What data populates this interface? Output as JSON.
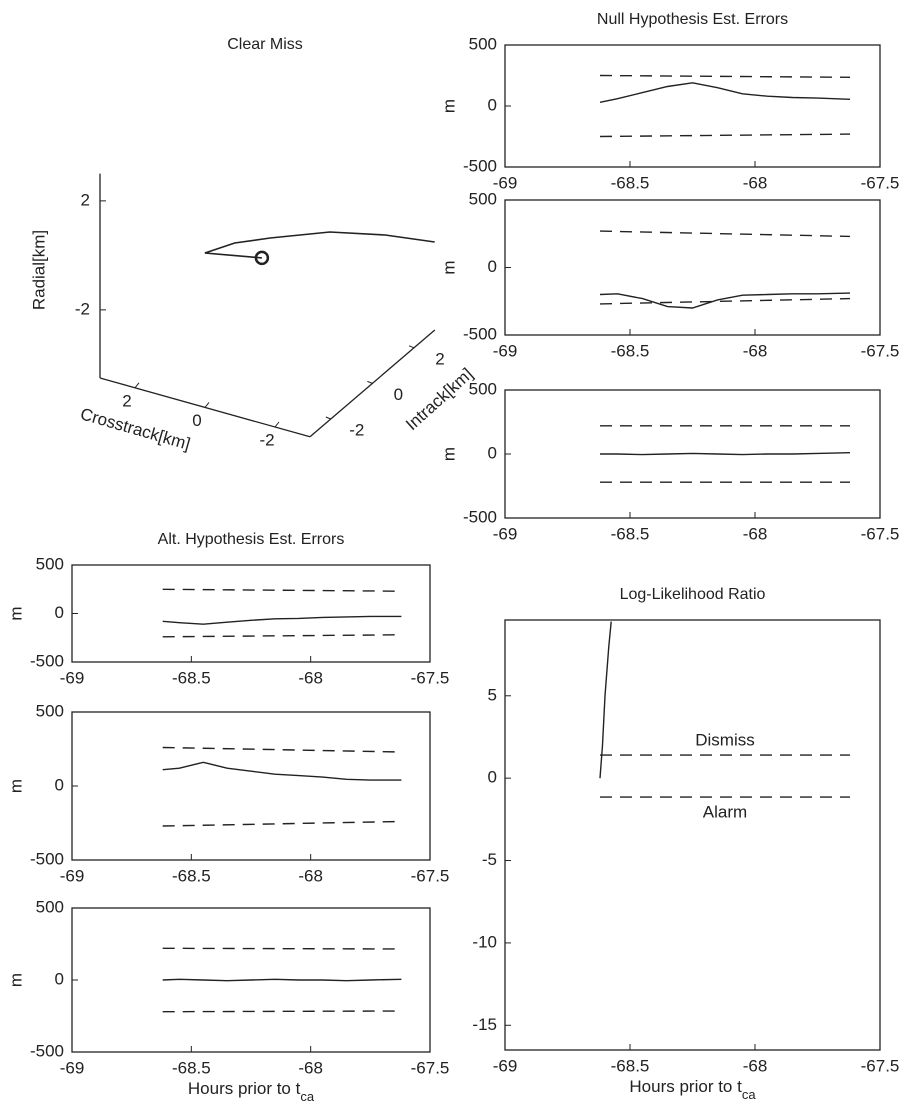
{
  "chart_data": [
    {
      "type": "line3d",
      "title": "Clear Miss",
      "xlabel": "Crosstrack[km]",
      "ylabel": "Intrack[km]",
      "zlabel": "Radial[km]",
      "xlim": [
        -3,
        3
      ],
      "ylim": [
        -3,
        3
      ],
      "zlim": [
        -4.5,
        3
      ],
      "xticks": [
        2,
        0,
        -2
      ],
      "yticks": [
        -2,
        0,
        2
      ],
      "zticks": [
        -2,
        2
      ],
      "series": [
        {
          "color": "#222",
          "x": [
            0.39,
            0.0,
            -0.64,
            -1.77,
            -3.04,
            -4.28
          ],
          "y": [
            -2.35,
            -1.57,
            -0.94,
            0.02,
            0.55,
            0.84
          ],
          "z": [
            0.6,
            0.6,
            0.6,
            0.6,
            0.6,
            0.6
          ]
        },
        {
          "color": "#222",
          "x": [
            0.39,
            -0.96
          ],
          "y": [
            -2.35,
            -1.88
          ],
          "z": [
            0.6,
            0.6
          ]
        },
        {
          "color": "#222",
          "marker": "o",
          "x": [
            -0.96
          ],
          "y": [
            -1.88
          ],
          "z": [
            0.6
          ]
        }
      ]
    },
    {
      "type": "line",
      "title": "Null Hypothesis Est. Errors",
      "ylabel": "m",
      "xlim": [
        -69,
        -67.5
      ],
      "ylim": [
        -500,
        500
      ],
      "xticks": [
        -69,
        -68.5,
        -68,
        -67.5
      ],
      "yticks": [
        -500,
        0,
        500
      ],
      "series": [
        {
          "color": "#222",
          "style": "solid",
          "x": [
            -68.62,
            -68.55,
            -68.45,
            -68.35,
            -68.25,
            -68.15,
            -68.05,
            -67.95,
            -67.85,
            -67.75,
            -67.62
          ],
          "values": [
            30,
            60,
            110,
            160,
            190,
            150,
            100,
            80,
            70,
            65,
            55
          ]
        },
        {
          "color": "#222",
          "style": "dashed",
          "x": [
            -68.62,
            -67.62
          ],
          "values": [
            250,
            235
          ]
        },
        {
          "color": "#222",
          "style": "dashed",
          "x": [
            -68.62,
            -67.62
          ],
          "values": [
            -250,
            -230
          ]
        }
      ]
    },
    {
      "type": "line",
      "ylabel": "m",
      "xlim": [
        -69,
        -67.5
      ],
      "ylim": [
        -500,
        500
      ],
      "xticks": [
        -69,
        -68.5,
        -68,
        -67.5
      ],
      "yticks": [
        -500,
        0,
        500
      ],
      "series": [
        {
          "color": "#222",
          "style": "solid",
          "x": [
            -68.62,
            -68.55,
            -68.45,
            -68.35,
            -68.25,
            -68.15,
            -68.05,
            -67.95,
            -67.85,
            -67.75,
            -67.62
          ],
          "values": [
            -200,
            -195,
            -230,
            -290,
            -300,
            -240,
            -205,
            -200,
            -195,
            -195,
            -190
          ]
        },
        {
          "color": "#222",
          "style": "dashed",
          "x": [
            -68.62,
            -67.62
          ],
          "values": [
            270,
            230
          ]
        },
        {
          "color": "#222",
          "style": "dashed",
          "x": [
            -68.62,
            -67.62
          ],
          "values": [
            -270,
            -230
          ]
        }
      ]
    },
    {
      "type": "line",
      "ylabel": "m",
      "xlim": [
        -69,
        -67.5
      ],
      "ylim": [
        -500,
        500
      ],
      "xticks": [
        -69,
        -68.5,
        -68,
        -67.5
      ],
      "yticks": [
        -500,
        0,
        500
      ],
      "series": [
        {
          "color": "#222",
          "style": "solid",
          "x": [
            -68.62,
            -68.55,
            -68.45,
            -68.35,
            -68.25,
            -68.15,
            -68.05,
            -67.95,
            -67.85,
            -67.75,
            -67.62
          ],
          "values": [
            0,
            0,
            -5,
            0,
            5,
            0,
            -5,
            0,
            0,
            5,
            10
          ]
        },
        {
          "color": "#222",
          "style": "dashed",
          "x": [
            -68.62,
            -67.62
          ],
          "values": [
            220,
            220
          ]
        },
        {
          "color": "#222",
          "style": "dashed",
          "x": [
            -68.62,
            -67.62
          ],
          "values": [
            -220,
            -220
          ]
        }
      ]
    },
    {
      "type": "line",
      "title": "Alt. Hypothesis Est. Errors",
      "ylabel": "m",
      "xlim": [
        -69,
        -67.5
      ],
      "ylim": [
        -500,
        500
      ],
      "xticks": [
        -69,
        -68.5,
        -68,
        -67.5
      ],
      "yticks": [
        -500,
        0,
        500
      ],
      "series": [
        {
          "color": "#222",
          "style": "solid",
          "x": [
            -68.62,
            -68.55,
            -68.45,
            -68.35,
            -68.25,
            -68.15,
            -68.05,
            -67.95,
            -67.85,
            -67.75,
            -67.62
          ],
          "values": [
            -80,
            -95,
            -110,
            -90,
            -70,
            -55,
            -50,
            -40,
            -35,
            -30,
            -30
          ]
        },
        {
          "color": "#222",
          "style": "dashed",
          "x": [
            -68.62,
            -67.62
          ],
          "values": [
            250,
            230
          ]
        },
        {
          "color": "#222",
          "style": "dashed",
          "x": [
            -68.62,
            -67.62
          ],
          "values": [
            -240,
            -220
          ]
        }
      ]
    },
    {
      "type": "line",
      "ylabel": "m",
      "xlim": [
        -69,
        -67.5
      ],
      "ylim": [
        -500,
        500
      ],
      "xticks": [
        -69,
        -68.5,
        -68,
        -67.5
      ],
      "yticks": [
        -500,
        0,
        500
      ],
      "series": [
        {
          "color": "#222",
          "style": "solid",
          "x": [
            -68.62,
            -68.55,
            -68.45,
            -68.35,
            -68.25,
            -68.15,
            -68.05,
            -67.95,
            -67.85,
            -67.75,
            -67.62
          ],
          "values": [
            110,
            120,
            160,
            120,
            100,
            80,
            70,
            60,
            45,
            40,
            40
          ]
        },
        {
          "color": "#222",
          "style": "dashed",
          "x": [
            -68.62,
            -67.62
          ],
          "values": [
            260,
            230
          ]
        },
        {
          "color": "#222",
          "style": "dashed",
          "x": [
            -68.62,
            -67.62
          ],
          "values": [
            -270,
            -240
          ]
        }
      ]
    },
    {
      "type": "line",
      "ylabel": "m",
      "xlabel": {
        "text": "Hours prior to t",
        "subscript": "ca"
      },
      "xlim": [
        -69,
        -67.5
      ],
      "ylim": [
        -500,
        500
      ],
      "xticks": [
        -69,
        -68.5,
        -68,
        -67.5
      ],
      "yticks": [
        -500,
        0,
        500
      ],
      "series": [
        {
          "color": "#222",
          "style": "solid",
          "x": [
            -68.62,
            -68.55,
            -68.45,
            -68.35,
            -68.25,
            -68.15,
            -68.05,
            -67.95,
            -67.85,
            -67.75,
            -67.62
          ],
          "values": [
            0,
            5,
            0,
            -5,
            0,
            5,
            0,
            0,
            -5,
            0,
            5
          ]
        },
        {
          "color": "#222",
          "style": "dashed",
          "x": [
            -68.62,
            -67.62
          ],
          "values": [
            220,
            215
          ]
        },
        {
          "color": "#222",
          "style": "dashed",
          "x": [
            -68.62,
            -67.62
          ],
          "values": [
            -220,
            -215
          ]
        }
      ]
    },
    {
      "type": "line",
      "title": "Log-Likelihood Ratio",
      "xlabel": {
        "text": "Hours prior to t",
        "subscript": "ca"
      },
      "xlim": [
        -69,
        -67.5
      ],
      "ylim": [
        -16.5,
        9.6
      ],
      "xticks": [
        -69,
        -68.5,
        -68,
        -67.5
      ],
      "yticks": [
        -15,
        -10,
        -5,
        0,
        5
      ],
      "series": [
        {
          "color": "#222",
          "style": "solid",
          "x": [
            -68.62,
            -68.61,
            -68.6,
            -68.585,
            -68.575
          ],
          "values": [
            0,
            2,
            5,
            8,
            9.5
          ]
        },
        {
          "name": "Dismiss",
          "color": "#222",
          "style": "dashed",
          "x": [
            -68.62,
            -67.62
          ],
          "values": [
            1.4,
            1.4
          ]
        },
        {
          "name": "Alarm",
          "color": "#222",
          "style": "dashed",
          "x": [
            -68.62,
            -67.62
          ],
          "values": [
            -1.15,
            -1.15
          ]
        }
      ]
    }
  ]
}
